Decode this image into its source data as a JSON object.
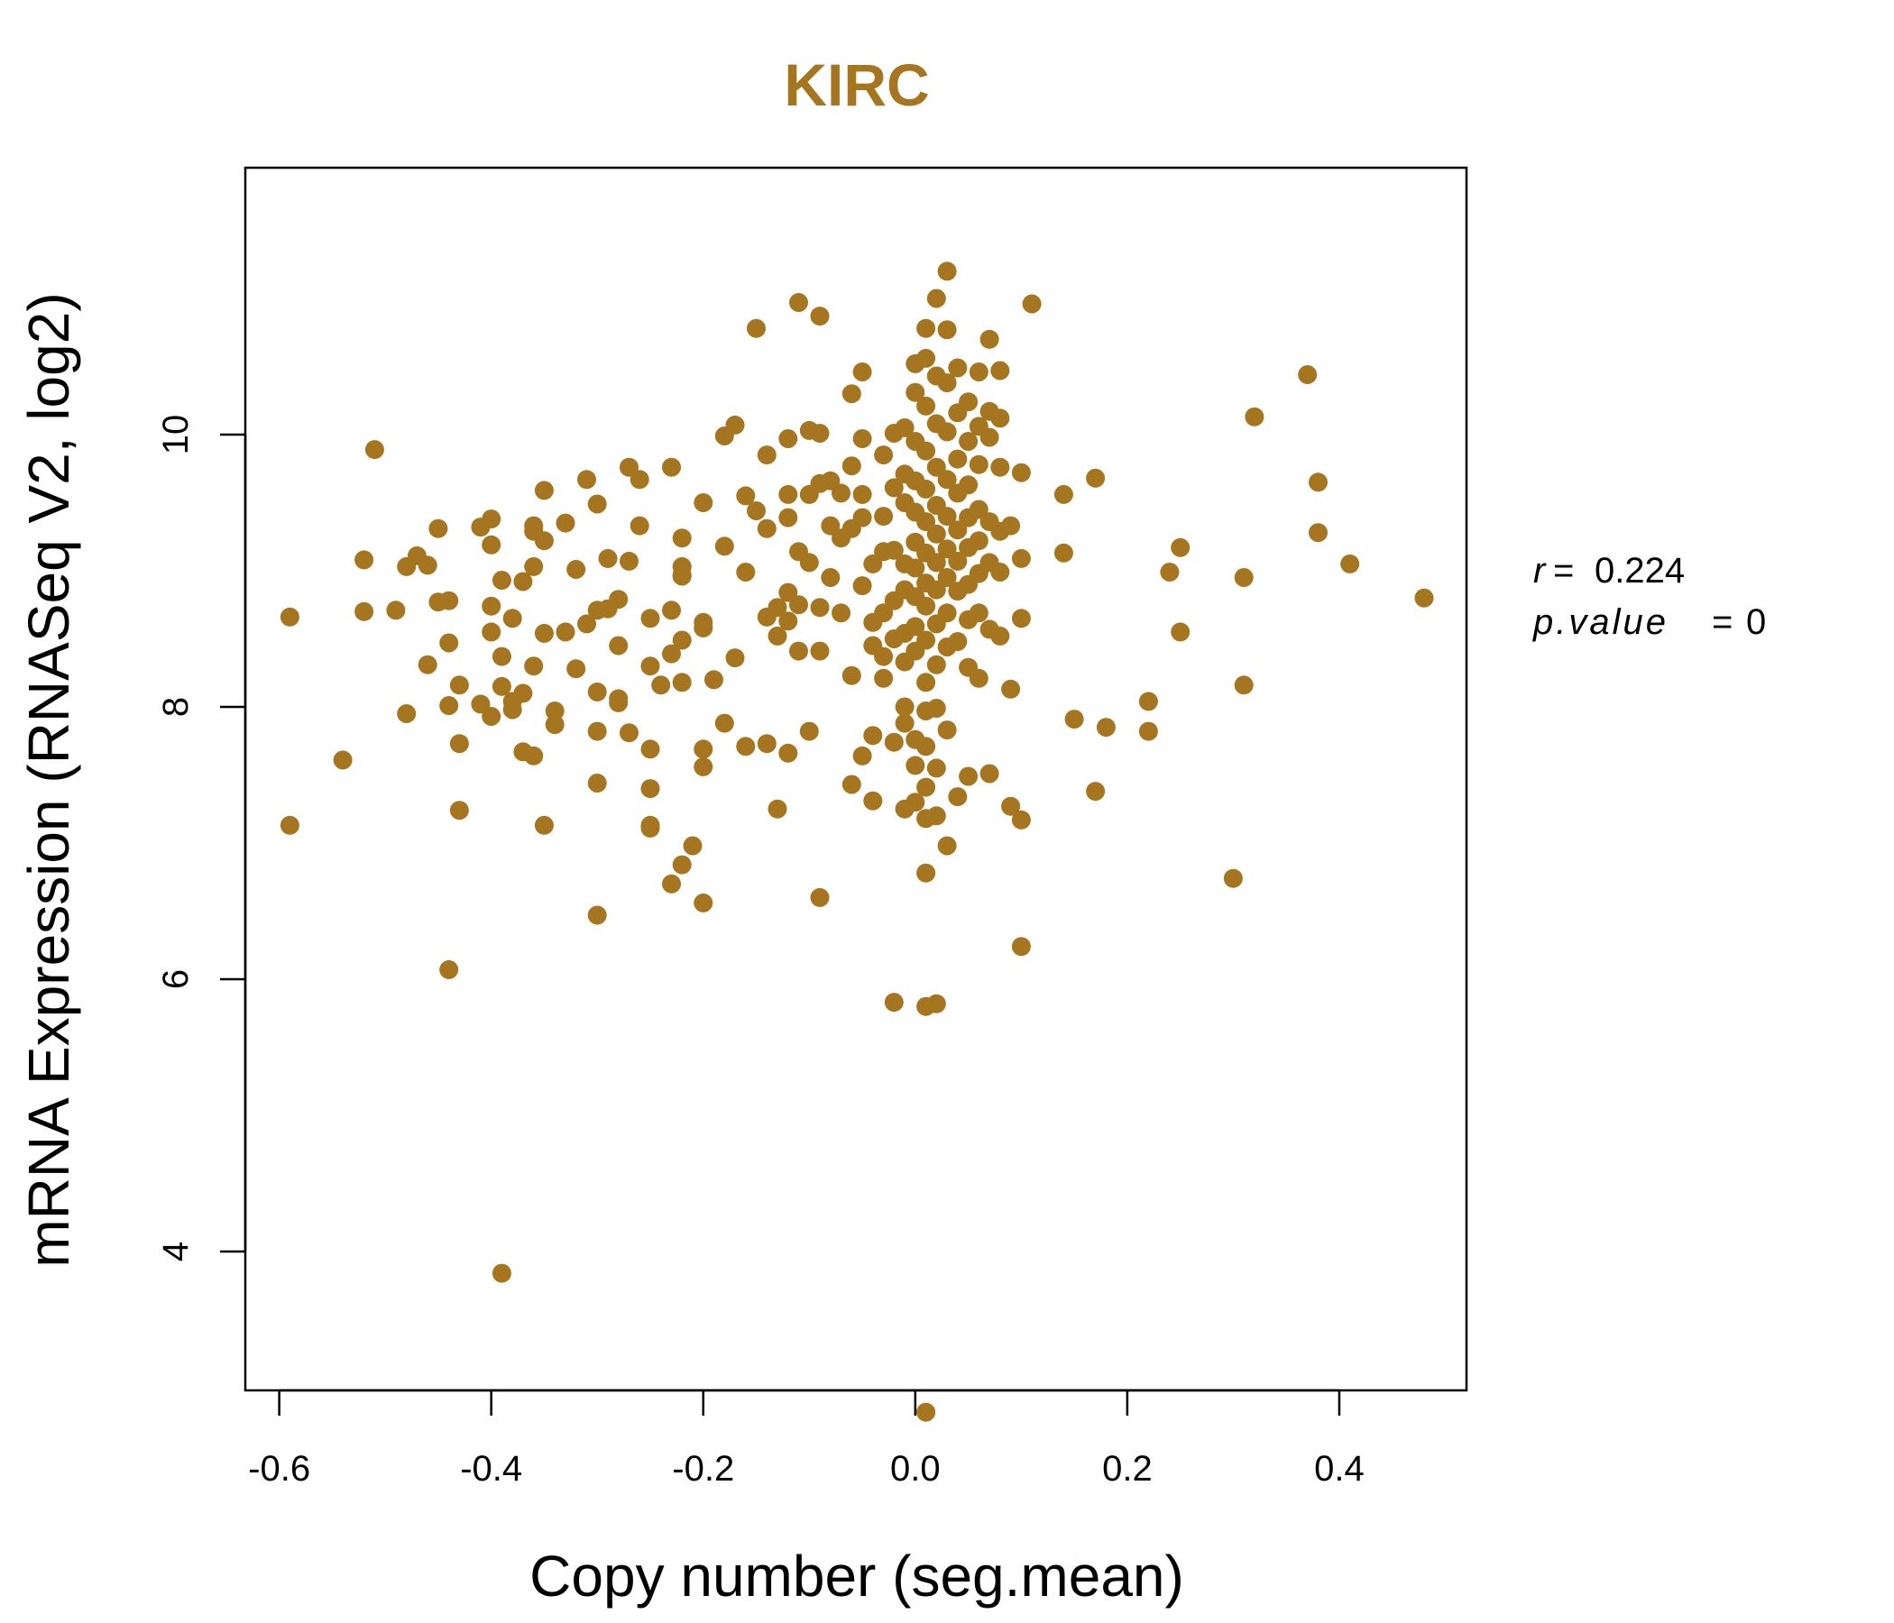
{
  "chart_data": {
    "type": "scatter",
    "title": "KIRC",
    "xlabel": "Copy number (seg.mean)",
    "ylabel": "mRNA Expression (RNASeq V2, log2)",
    "xlim": [
      -0.632,
      0.52
    ],
    "ylim": [
      2.98,
      11.96
    ],
    "x_ticks": [
      -0.6,
      -0.4,
      -0.2,
      0.0,
      0.2,
      0.4
    ],
    "x_tick_labels": [
      "-0.6",
      "-0.4",
      "-0.2",
      "0.0",
      "0.2",
      "0.4"
    ],
    "y_ticks": [
      4,
      6,
      8,
      10
    ],
    "y_tick_labels": [
      "4",
      "6",
      "8",
      "10"
    ],
    "grid": false,
    "color": "#A67520",
    "stats": {
      "r_label": "r",
      "r_value": "0.224",
      "p_label": "p.value",
      "p_value": "0"
    },
    "series": [
      {
        "points": [
          [
            -0.59,
            8.66
          ],
          [
            -0.59,
            7.13
          ],
          [
            -0.54,
            7.61
          ],
          [
            -0.52,
            8.7
          ],
          [
            -0.52,
            9.08
          ],
          [
            -0.51,
            9.89
          ],
          [
            -0.49,
            8.71
          ],
          [
            -0.48,
            9.03
          ],
          [
            -0.48,
            7.95
          ],
          [
            -0.47,
            9.11
          ],
          [
            -0.46,
            9.04
          ],
          [
            -0.46,
            8.31
          ],
          [
            -0.45,
            9.31
          ],
          [
            -0.45,
            8.77
          ],
          [
            -0.44,
            8.78
          ],
          [
            -0.44,
            8.47
          ],
          [
            -0.44,
            8.01
          ],
          [
            -0.44,
            6.07
          ],
          [
            -0.43,
            8.16
          ],
          [
            -0.43,
            7.73
          ],
          [
            -0.43,
            7.24
          ],
          [
            -0.41,
            9.32
          ],
          [
            -0.4,
            9.38
          ],
          [
            -0.4,
            9.19
          ],
          [
            -0.4,
            8.55
          ],
          [
            -0.41,
            8.02
          ],
          [
            -0.4,
            7.93
          ],
          [
            -0.4,
            8.74
          ],
          [
            -0.39,
            8.93
          ],
          [
            -0.39,
            8.37
          ],
          [
            -0.39,
            8.15
          ],
          [
            -0.38,
            8.65
          ],
          [
            -0.38,
            7.98
          ],
          [
            -0.38,
            8.04
          ],
          [
            -0.37,
            8.1
          ],
          [
            -0.37,
            7.67
          ],
          [
            -0.37,
            8.92
          ],
          [
            -0.36,
            9.29
          ],
          [
            -0.36,
            9.33
          ],
          [
            -0.36,
            9.03
          ],
          [
            -0.36,
            8.3
          ],
          [
            -0.36,
            7.64
          ],
          [
            -0.35,
            9.59
          ],
          [
            -0.35,
            9.22
          ],
          [
            -0.35,
            7.13
          ],
          [
            -0.35,
            8.54
          ],
          [
            -0.34,
            7.97
          ],
          [
            -0.34,
            7.87
          ],
          [
            -0.33,
            9.35
          ],
          [
            -0.33,
            8.55
          ],
          [
            -0.32,
            9.01
          ],
          [
            -0.32,
            8.28
          ],
          [
            -0.31,
            8.61
          ],
          [
            -0.31,
            9.67
          ],
          [
            -0.3,
            9.49
          ],
          [
            -0.3,
            8.71
          ],
          [
            -0.3,
            8.11
          ],
          [
            -0.3,
            7.82
          ],
          [
            -0.3,
            7.44
          ],
          [
            -0.3,
            6.47
          ],
          [
            -0.29,
            8.72
          ],
          [
            -0.29,
            9.09
          ],
          [
            -0.28,
            8.79
          ],
          [
            -0.28,
            8.06
          ],
          [
            -0.28,
            8.03
          ],
          [
            -0.28,
            8.45
          ],
          [
            -0.27,
            9.76
          ],
          [
            -0.27,
            9.07
          ],
          [
            -0.27,
            7.81
          ],
          [
            -0.26,
            9.67
          ],
          [
            -0.26,
            9.33
          ],
          [
            -0.25,
            8.65
          ],
          [
            -0.25,
            8.3
          ],
          [
            -0.25,
            7.69
          ],
          [
            -0.25,
            7.4
          ],
          [
            -0.25,
            7.11
          ],
          [
            -0.25,
            7.13
          ],
          [
            -0.24,
            8.16
          ],
          [
            -0.23,
            9.76
          ],
          [
            -0.23,
            8.71
          ],
          [
            -0.23,
            8.39
          ],
          [
            -0.23,
            6.7
          ],
          [
            -0.22,
            9.24
          ],
          [
            -0.22,
            9.03
          ],
          [
            -0.22,
            8.18
          ],
          [
            -0.22,
            8.96
          ],
          [
            -0.22,
            8.97
          ],
          [
            -0.22,
            8.49
          ],
          [
            -0.22,
            6.84
          ],
          [
            -0.21,
            6.98
          ],
          [
            -0.2,
            9.5
          ],
          [
            -0.2,
            8.58
          ],
          [
            -0.2,
            8.62
          ],
          [
            -0.2,
            7.69
          ],
          [
            -0.2,
            7.56
          ],
          [
            -0.2,
            6.56
          ],
          [
            -0.19,
            8.2
          ],
          [
            -0.18,
            9.99
          ],
          [
            -0.18,
            9.18
          ],
          [
            -0.18,
            7.88
          ],
          [
            -0.17,
            10.07
          ],
          [
            -0.17,
            8.36
          ],
          [
            -0.16,
            9.55
          ],
          [
            -0.16,
            8.99
          ],
          [
            -0.16,
            7.71
          ],
          [
            -0.15,
            10.78
          ],
          [
            -0.15,
            9.44
          ],
          [
            -0.14,
            9.85
          ],
          [
            -0.14,
            9.31
          ],
          [
            -0.14,
            8.66
          ],
          [
            -0.14,
            7.73
          ],
          [
            -0.13,
            8.73
          ],
          [
            -0.13,
            8.52
          ],
          [
            -0.13,
            7.25
          ],
          [
            -0.12,
            9.97
          ],
          [
            -0.12,
            9.56
          ],
          [
            -0.12,
            9.39
          ],
          [
            -0.12,
            8.84
          ],
          [
            -0.12,
            8.63
          ],
          [
            -0.12,
            7.66
          ],
          [
            -0.11,
            10.97
          ],
          [
            -0.11,
            9.14
          ],
          [
            -0.11,
            8.75
          ],
          [
            -0.11,
            8.41
          ],
          [
            -0.1,
            10.03
          ],
          [
            -0.1,
            9.56
          ],
          [
            -0.1,
            9.06
          ],
          [
            -0.1,
            7.82
          ],
          [
            -0.09,
            10.87
          ],
          [
            -0.09,
            10.01
          ],
          [
            -0.09,
            9.64
          ],
          [
            -0.09,
            8.73
          ],
          [
            -0.09,
            8.41
          ],
          [
            -0.09,
            6.6
          ],
          [
            -0.08,
            9.66
          ],
          [
            -0.08,
            9.33
          ],
          [
            -0.08,
            8.95
          ],
          [
            -0.07,
            9.57
          ],
          [
            -0.07,
            9.24
          ],
          [
            -0.07,
            8.69
          ],
          [
            -0.06,
            10.3
          ],
          [
            -0.06,
            9.77
          ],
          [
            -0.06,
            9.31
          ],
          [
            -0.06,
            8.23
          ],
          [
            -0.05,
            10.46
          ],
          [
            -0.05,
            9.97
          ],
          [
            -0.05,
            9.56
          ],
          [
            -0.05,
            9.39
          ],
          [
            -0.05,
            8.89
          ],
          [
            -0.05,
            7.64
          ],
          [
            -0.06,
            7.43
          ],
          [
            -0.04,
            9.05
          ],
          [
            -0.04,
            8.62
          ],
          [
            -0.04,
            8.45
          ],
          [
            -0.04,
            7.79
          ],
          [
            -0.04,
            7.31
          ],
          [
            -0.03,
            9.85
          ],
          [
            -0.03,
            9.4
          ],
          [
            -0.03,
            9.14
          ],
          [
            -0.03,
            8.69
          ],
          [
            -0.03,
            8.37
          ],
          [
            -0.03,
            8.21
          ],
          [
            -0.02,
            10.01
          ],
          [
            -0.02,
            9.61
          ],
          [
            -0.02,
            9.15
          ],
          [
            -0.02,
            8.78
          ],
          [
            -0.02,
            8.5
          ],
          [
            -0.02,
            7.74
          ],
          [
            -0.02,
            5.83
          ],
          [
            -0.01,
            10.05
          ],
          [
            -0.01,
            9.71
          ],
          [
            -0.01,
            9.5
          ],
          [
            -0.01,
            9.05
          ],
          [
            -0.01,
            8.86
          ],
          [
            -0.01,
            8.54
          ],
          [
            -0.01,
            8.33
          ],
          [
            -0.01,
            8.0
          ],
          [
            -0.01,
            7.88
          ],
          [
            -0.01,
            7.25
          ],
          [
            0.0,
            10.52
          ],
          [
            0.0,
            10.31
          ],
          [
            0.0,
            9.95
          ],
          [
            0.0,
            9.66
          ],
          [
            0.0,
            9.43
          ],
          [
            0.0,
            9.21
          ],
          [
            0.0,
            9.02
          ],
          [
            0.0,
            8.81
          ],
          [
            0.0,
            8.59
          ],
          [
            0.0,
            8.41
          ],
          [
            0.0,
            7.76
          ],
          [
            0.0,
            7.57
          ],
          [
            0.0,
            7.3
          ],
          [
            0.01,
            10.78
          ],
          [
            0.01,
            10.56
          ],
          [
            0.01,
            10.21
          ],
          [
            0.01,
            9.88
          ],
          [
            0.01,
            9.6
          ],
          [
            0.01,
            9.36
          ],
          [
            0.01,
            9.13
          ],
          [
            0.01,
            8.91
          ],
          [
            0.01,
            8.74
          ],
          [
            0.01,
            8.49
          ],
          [
            0.01,
            8.18
          ],
          [
            0.01,
            7.97
          ],
          [
            0.01,
            7.71
          ],
          [
            0.01,
            7.41
          ],
          [
            0.01,
            7.18
          ],
          [
            0.01,
            6.78
          ],
          [
            0.01,
            5.8
          ],
          [
            0.01,
            2.82
          ],
          [
            0.02,
            11.0
          ],
          [
            0.02,
            10.43
          ],
          [
            0.02,
            10.08
          ],
          [
            0.02,
            9.76
          ],
          [
            0.02,
            9.48
          ],
          [
            0.02,
            9.27
          ],
          [
            0.02,
            9.06
          ],
          [
            0.02,
            8.86
          ],
          [
            0.02,
            8.61
          ],
          [
            0.02,
            8.31
          ],
          [
            0.02,
            7.99
          ],
          [
            0.02,
            7.55
          ],
          [
            0.02,
            7.2
          ],
          [
            0.02,
            5.82
          ],
          [
            0.03,
            11.2
          ],
          [
            0.03,
            10.77
          ],
          [
            0.03,
            10.38
          ],
          [
            0.03,
            10.02
          ],
          [
            0.03,
            9.67
          ],
          [
            0.03,
            9.4
          ],
          [
            0.03,
            9.16
          ],
          [
            0.03,
            8.95
          ],
          [
            0.03,
            8.69
          ],
          [
            0.03,
            8.44
          ],
          [
            0.03,
            7.83
          ],
          [
            0.03,
            6.98
          ],
          [
            0.04,
            10.49
          ],
          [
            0.04,
            10.16
          ],
          [
            0.04,
            9.82
          ],
          [
            0.04,
            9.57
          ],
          [
            0.04,
            9.3
          ],
          [
            0.04,
            9.07
          ],
          [
            0.04,
            8.85
          ],
          [
            0.04,
            8.48
          ],
          [
            0.04,
            7.34
          ],
          [
            0.05,
            10.24
          ],
          [
            0.05,
            9.95
          ],
          [
            0.05,
            9.63
          ],
          [
            0.05,
            9.39
          ],
          [
            0.05,
            9.17
          ],
          [
            0.05,
            8.9
          ],
          [
            0.05,
            8.64
          ],
          [
            0.05,
            8.29
          ],
          [
            0.05,
            7.49
          ],
          [
            0.06,
            10.46
          ],
          [
            0.06,
            10.06
          ],
          [
            0.06,
            9.78
          ],
          [
            0.06,
            9.45
          ],
          [
            0.06,
            9.22
          ],
          [
            0.06,
            8.98
          ],
          [
            0.06,
            8.69
          ],
          [
            0.06,
            8.21
          ],
          [
            0.07,
            10.17
          ],
          [
            0.07,
            9.98
          ],
          [
            0.07,
            9.36
          ],
          [
            0.07,
            9.06
          ],
          [
            0.07,
            8.57
          ],
          [
            0.07,
            7.51
          ],
          [
            0.07,
            10.7
          ],
          [
            0.08,
            10.47
          ],
          [
            0.08,
            10.12
          ],
          [
            0.08,
            9.76
          ],
          [
            0.08,
            9.29
          ],
          [
            0.08,
            8.99
          ],
          [
            0.08,
            8.52
          ],
          [
            0.09,
            9.33
          ],
          [
            0.09,
            8.13
          ],
          [
            0.09,
            7.27
          ],
          [
            0.1,
            9.72
          ],
          [
            0.1,
            9.09
          ],
          [
            0.1,
            8.65
          ],
          [
            0.1,
            7.17
          ],
          [
            0.1,
            6.24
          ],
          [
            0.11,
            10.96
          ],
          [
            0.14,
            9.56
          ],
          [
            0.14,
            9.13
          ],
          [
            0.15,
            7.91
          ],
          [
            0.17,
            9.68
          ],
          [
            0.17,
            7.38
          ],
          [
            0.18,
            7.85
          ],
          [
            0.22,
            8.04
          ],
          [
            0.22,
            7.82
          ],
          [
            0.24,
            8.99
          ],
          [
            0.25,
            9.17
          ],
          [
            0.25,
            8.55
          ],
          [
            0.3,
            6.74
          ],
          [
            0.31,
            8.95
          ],
          [
            0.31,
            8.16
          ],
          [
            0.32,
            10.13
          ],
          [
            0.37,
            10.44
          ],
          [
            0.38,
            9.65
          ],
          [
            0.38,
            9.28
          ],
          [
            0.41,
            9.05
          ],
          [
            0.48,
            8.8
          ],
          [
            -0.39,
            3.84
          ]
        ]
      }
    ]
  }
}
